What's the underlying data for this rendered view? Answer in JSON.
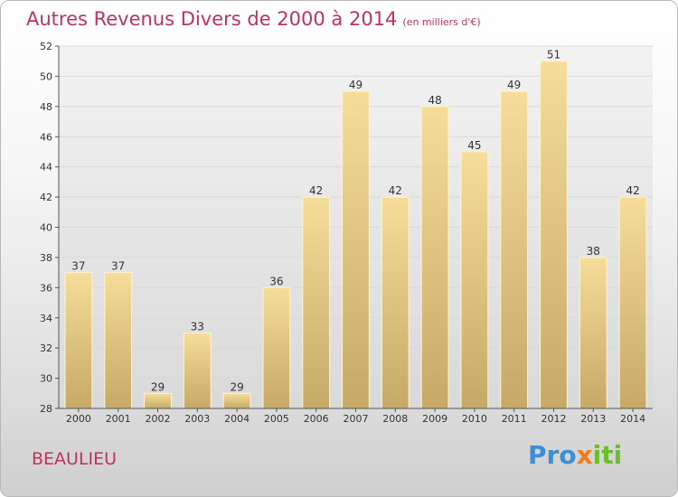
{
  "header": {
    "title": "Autres Revenus Divers de 2000 à 2014",
    "unit": "(en milliers d'€)"
  },
  "footer": {
    "location": "BEAULIEU",
    "logo": {
      "part1": "Pro",
      "part2": "x",
      "part3": "iti"
    }
  },
  "colors": {
    "title": "#c0325a",
    "bar_light": "#f4da96",
    "bar_dark": "#c8ad6a",
    "grid": "#d9d9d9"
  },
  "chart_data": {
    "type": "bar",
    "title": "Autres Revenus Divers de 2000 à 2014",
    "subtitle": "(en milliers d'€)",
    "xlabel": "",
    "ylabel": "",
    "categories": [
      "2000",
      "2001",
      "2002",
      "2003",
      "2004",
      "2005",
      "2006",
      "2007",
      "2008",
      "2009",
      "2010",
      "2011",
      "2012",
      "2013",
      "2014"
    ],
    "values": [
      37,
      37,
      29,
      33,
      29,
      36,
      42,
      49,
      42,
      48,
      45,
      49,
      51,
      38,
      42
    ],
    "ylim": [
      28,
      52
    ],
    "yticks": [
      28,
      30,
      32,
      34,
      36,
      38,
      40,
      42,
      44,
      46,
      48,
      50,
      52
    ],
    "grid": true,
    "legend": "none"
  }
}
